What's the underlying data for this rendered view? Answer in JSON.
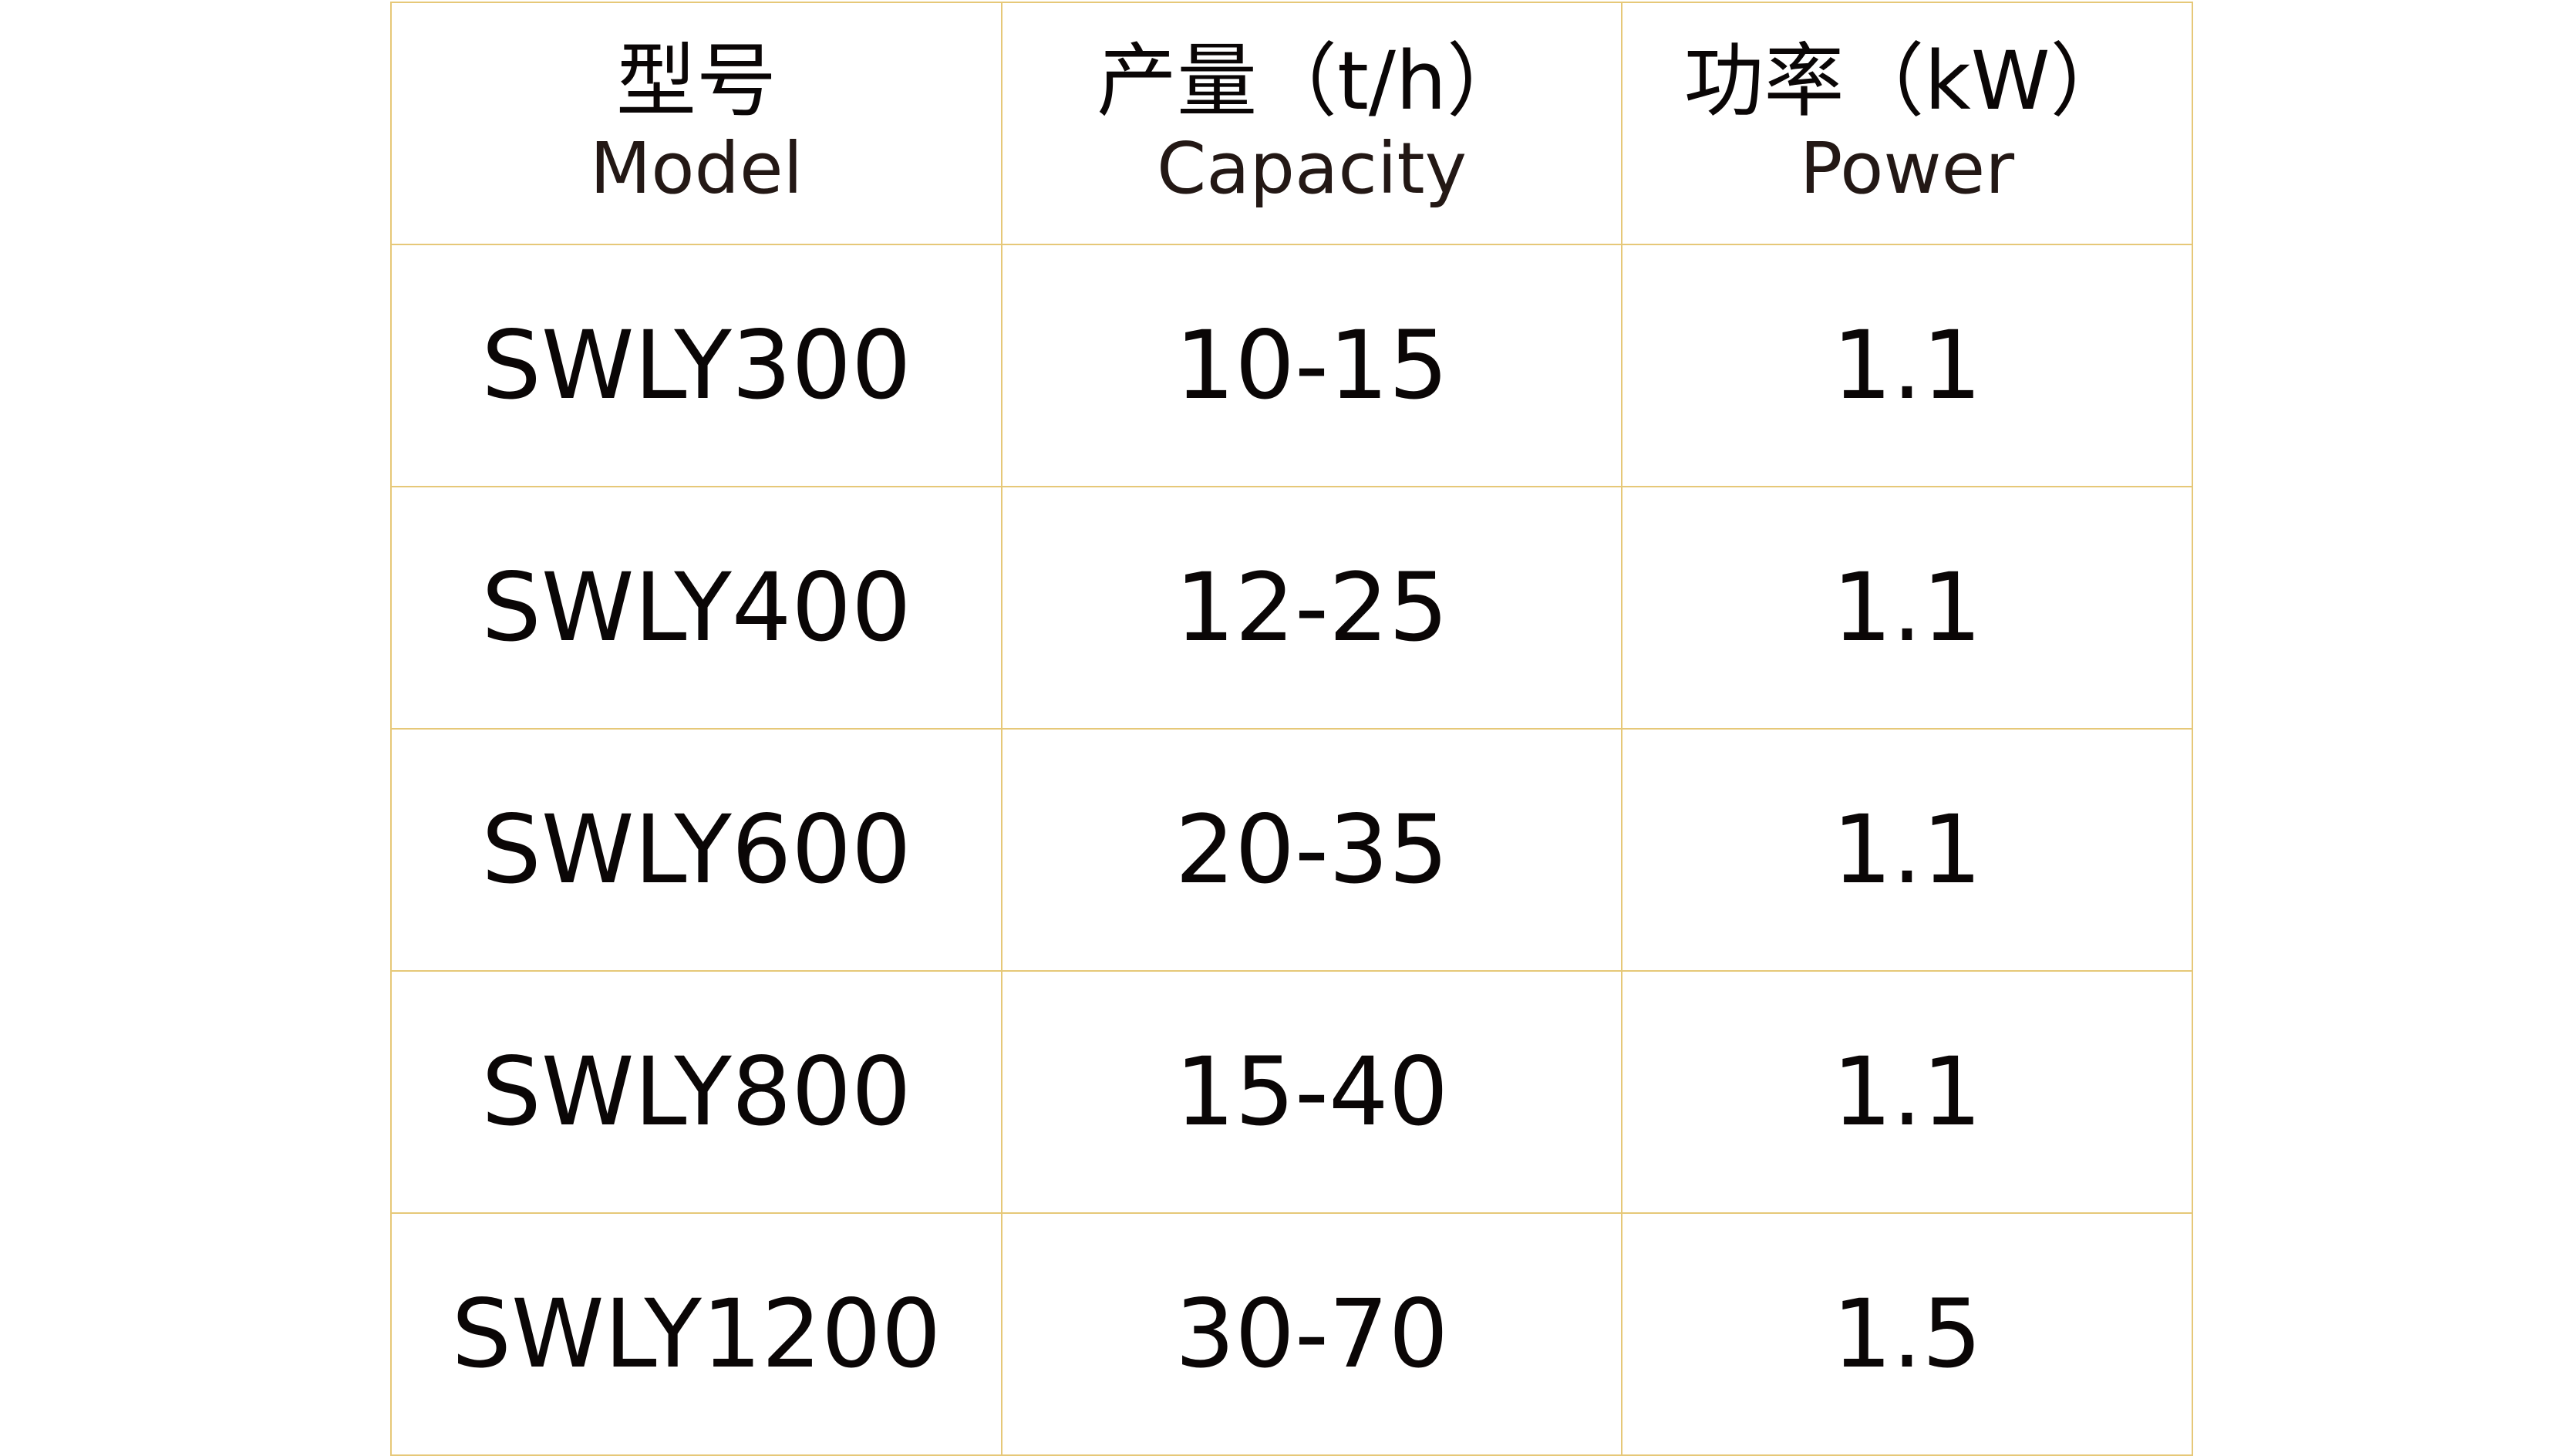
{
  "table": {
    "headers": [
      {
        "zh": "型号",
        "en": "Model"
      },
      {
        "zh": "产量（t/h）",
        "en": "Capacity"
      },
      {
        "zh": "功率（kW）",
        "en": "Power"
      }
    ],
    "rows": [
      [
        "SWLY300",
        "10-15",
        "1.1"
      ],
      [
        "SWLY400",
        "12-25",
        "1.1"
      ],
      [
        "SWLY600",
        "20-35",
        "1.1"
      ],
      [
        "SWLY800",
        "15-40",
        "1.1"
      ],
      [
        "SWLY1200",
        "30-70",
        "1.5"
      ]
    ],
    "border_color": "#e6c878"
  }
}
